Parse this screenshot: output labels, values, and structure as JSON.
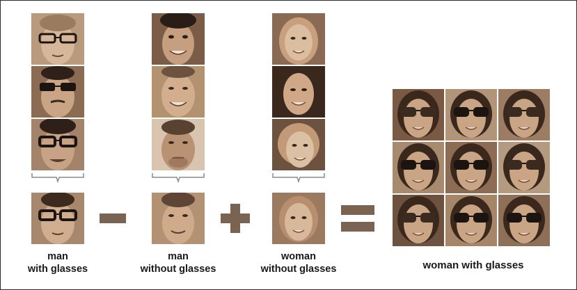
{
  "labels": {
    "man_with_glasses_line1": "man",
    "man_with_glasses_line2": "with glasses",
    "man_without_glasses_line1": "man",
    "man_without_glasses_line2": "without glasses",
    "woman_without_glasses_line1": "woman",
    "woman_without_glasses_line2": "without glasses",
    "result": "woman with glasses"
  },
  "operators": {
    "minus": "minus-sign",
    "plus": "plus-sign",
    "equals": "equals-sign"
  },
  "colors": {
    "sepia_light": "#d7b79a",
    "sepia_mid": "#a5805f",
    "sepia_dark": "#4a3424",
    "operator": "#7a6350",
    "glasses": "#1c1410",
    "bracket": "#8a8a8a"
  }
}
